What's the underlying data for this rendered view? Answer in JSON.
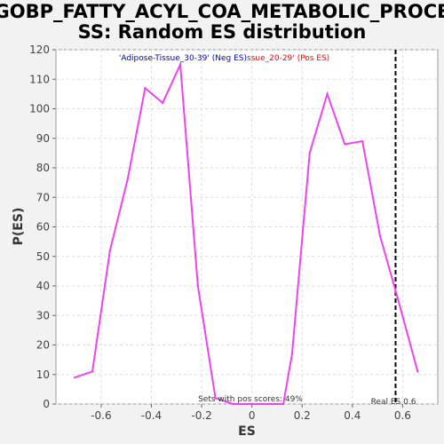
{
  "chart_data": {
    "type": "line",
    "title_line1": "GOBP_FATTY_ACYL_COA_METABOLIC_PROCE",
    "title_line2": "SS: Random ES distribution",
    "xlabel": "ES",
    "ylabel": "P(ES)",
    "xlim": [
      -0.78,
      0.74
    ],
    "ylim": [
      0,
      120
    ],
    "xticks": [
      -0.6,
      -0.4,
      -0.2,
      0.0,
      0.2,
      0.4,
      0.6
    ],
    "xtick_labels": [
      "-0.6",
      "-0.4",
      "-0.2",
      "0",
      "0.2",
      "0.4",
      "0.6"
    ],
    "yticks": [
      0,
      10,
      20,
      30,
      40,
      50,
      60,
      70,
      80,
      90,
      100,
      110,
      120
    ],
    "grid": true,
    "series": [
      {
        "color": "#ee44ee",
        "x": [
          -0.705,
          -0.635,
          -0.565,
          -0.495,
          -0.425,
          -0.355,
          -0.285,
          -0.215,
          -0.145,
          -0.075,
          -0.005,
          0.065,
          0.125,
          0.16,
          0.23,
          0.3,
          0.37,
          0.44,
          0.51,
          0.58,
          0.66
        ],
        "y": [
          9,
          11,
          52,
          76,
          107,
          102,
          115,
          40,
          2,
          0,
          0,
          0,
          0,
          17,
          85,
          105,
          88,
          89,
          57,
          36,
          11
        ]
      }
    ],
    "legend": {
      "neg_label": "'Adipose-Tissue_30-39' (Neg ES)",
      "pos_label": "ssue_20-29' (Pos ES)",
      "neg_color": "#0000cc",
      "pos_color": "#ff0000"
    },
    "real_es": {
      "value": 0.572,
      "label": "Real ES 0.6"
    },
    "annotation": "Sets with pos scores: 49%"
  }
}
